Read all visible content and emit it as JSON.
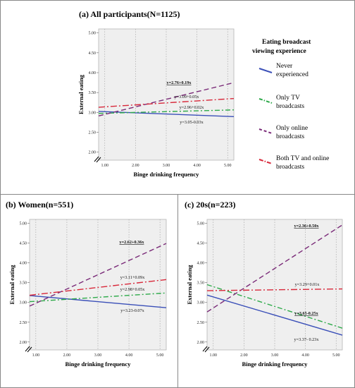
{
  "figure": {
    "legend": {
      "title_lines": [
        "Eating broadcast",
        "viewing experience"
      ],
      "items": [
        {
          "series": "Never experienced",
          "label_lines": [
            "Never",
            "experienced"
          ]
        },
        {
          "series": "Only TV broadcasts",
          "label_lines": [
            "Only TV",
            "broadcasts"
          ]
        },
        {
          "series": "Only online broadcasts",
          "label_lines": [
            "Only online",
            "broadcasts"
          ]
        },
        {
          "series": "Both TV and online broadcasts",
          "label_lines": [
            "Both TV and online",
            "broadcasts"
          ]
        }
      ]
    }
  },
  "chart_data": [
    {
      "type": "line",
      "title": "(a) All participants(N=1125)",
      "xlabel": "Binge drinking frequency",
      "ylabel": "External eating",
      "xlim": [
        0.8,
        5.2
      ],
      "ylim": [
        1.8,
        5.1
      ],
      "xticks": [
        "1.00",
        "2.00",
        "3.00",
        "4.00",
        "5.00"
      ],
      "yticks": [
        "2.00",
        "2.50",
        "3.00",
        "3.50",
        "4.00",
        "4.50",
        "5.00"
      ],
      "series": [
        {
          "name": "Never experienced",
          "intercept": 3.05,
          "slope": -0.03,
          "equation": "y=3.05-0.03x",
          "label_bold": false,
          "color": "#3a4fb8",
          "dash": ""
        },
        {
          "name": "Only TV broadcasts",
          "intercept": 2.96,
          "slope": 0.02,
          "equation": "y=2.96+0.02x",
          "label_bold": false,
          "color": "#2eaa4a",
          "dash": "7,3,2,3"
        },
        {
          "name": "Only online broadcasts",
          "intercept": 2.76,
          "slope": 0.19,
          "equation": "y=2.76+0.19x",
          "label_bold": true,
          "color": "#7a2a78",
          "dash": "7,4"
        },
        {
          "name": "Both TV and online broadcasts",
          "intercept": 3.09,
          "slope": 0.05,
          "equation": "y=3.09+0.05x",
          "label_bold": false,
          "color": "#d8283a",
          "dash": "9,3,2,3"
        }
      ]
    },
    {
      "type": "line",
      "title": "(b) Women(n=551)",
      "xlabel": "Binge drinking frequency",
      "ylabel": "External eating",
      "xlim": [
        0.8,
        5.2
      ],
      "ylim": [
        1.8,
        5.1
      ],
      "xticks": [
        "1.00",
        "2.00",
        "3.00",
        "4.00",
        "5.00"
      ],
      "yticks": [
        "2.00",
        "2.50",
        "3.00",
        "3.50",
        "4.00",
        "4.50",
        "5.00"
      ],
      "series": [
        {
          "name": "Never experienced",
          "intercept": 3.23,
          "slope": -0.07,
          "equation": "y=3.23-0.07x",
          "label_bold": false,
          "color": "#3a4fb8",
          "dash": ""
        },
        {
          "name": "Only TV broadcasts",
          "intercept": 2.98,
          "slope": 0.05,
          "equation": "y=2.98+0.05x",
          "label_bold": false,
          "color": "#2eaa4a",
          "dash": "7,3,2,3"
        },
        {
          "name": "Only online broadcasts",
          "intercept": 2.62,
          "slope": 0.36,
          "equation": "y=2.62+0.36x",
          "label_bold": true,
          "color": "#7a2a78",
          "dash": "7,4"
        },
        {
          "name": "Both TV and online broadcasts",
          "intercept": 3.11,
          "slope": 0.09,
          "equation": "y=3.11+0.09x",
          "label_bold": false,
          "color": "#d8283a",
          "dash": "9,3,2,3"
        }
      ]
    },
    {
      "type": "line",
      "title": "(c) 20s(n=223)",
      "xlabel": "Binge drinking frequency",
      "ylabel": "External eating",
      "xlim": [
        0.8,
        5.2
      ],
      "ylim": [
        1.8,
        5.1
      ],
      "xticks": [
        "1.00",
        "2.00",
        "3.00",
        "4.00",
        "5.00"
      ],
      "yticks": [
        "2.00",
        "2.50",
        "3.00",
        "3.50",
        "4.00",
        "4.50",
        "5.00"
      ],
      "series": [
        {
          "name": "Never experienced",
          "intercept": 3.37,
          "slope": -0.23,
          "equation": "y=3.37- 0.23x",
          "label_bold": false,
          "color": "#3a4fb8",
          "dash": ""
        },
        {
          "name": "Only TV broadcasts",
          "intercept": 3.65,
          "slope": -0.25,
          "equation": "y=3.65-0.25x",
          "label_bold": true,
          "color": "#2eaa4a",
          "dash": "7,3,2,3"
        },
        {
          "name": "Only online broadcasts",
          "intercept": 2.36,
          "slope": 0.5,
          "equation": "y=2.36+0.50x",
          "label_bold": true,
          "color": "#7a2a78",
          "dash": "7,4"
        },
        {
          "name": "Both TV and online broadcasts",
          "intercept": 3.29,
          "slope": 0.01,
          "equation": "y=3.29+0.01x",
          "label_bold": false,
          "color": "#d8283a",
          "dash": "9,3,2,3"
        }
      ]
    }
  ]
}
